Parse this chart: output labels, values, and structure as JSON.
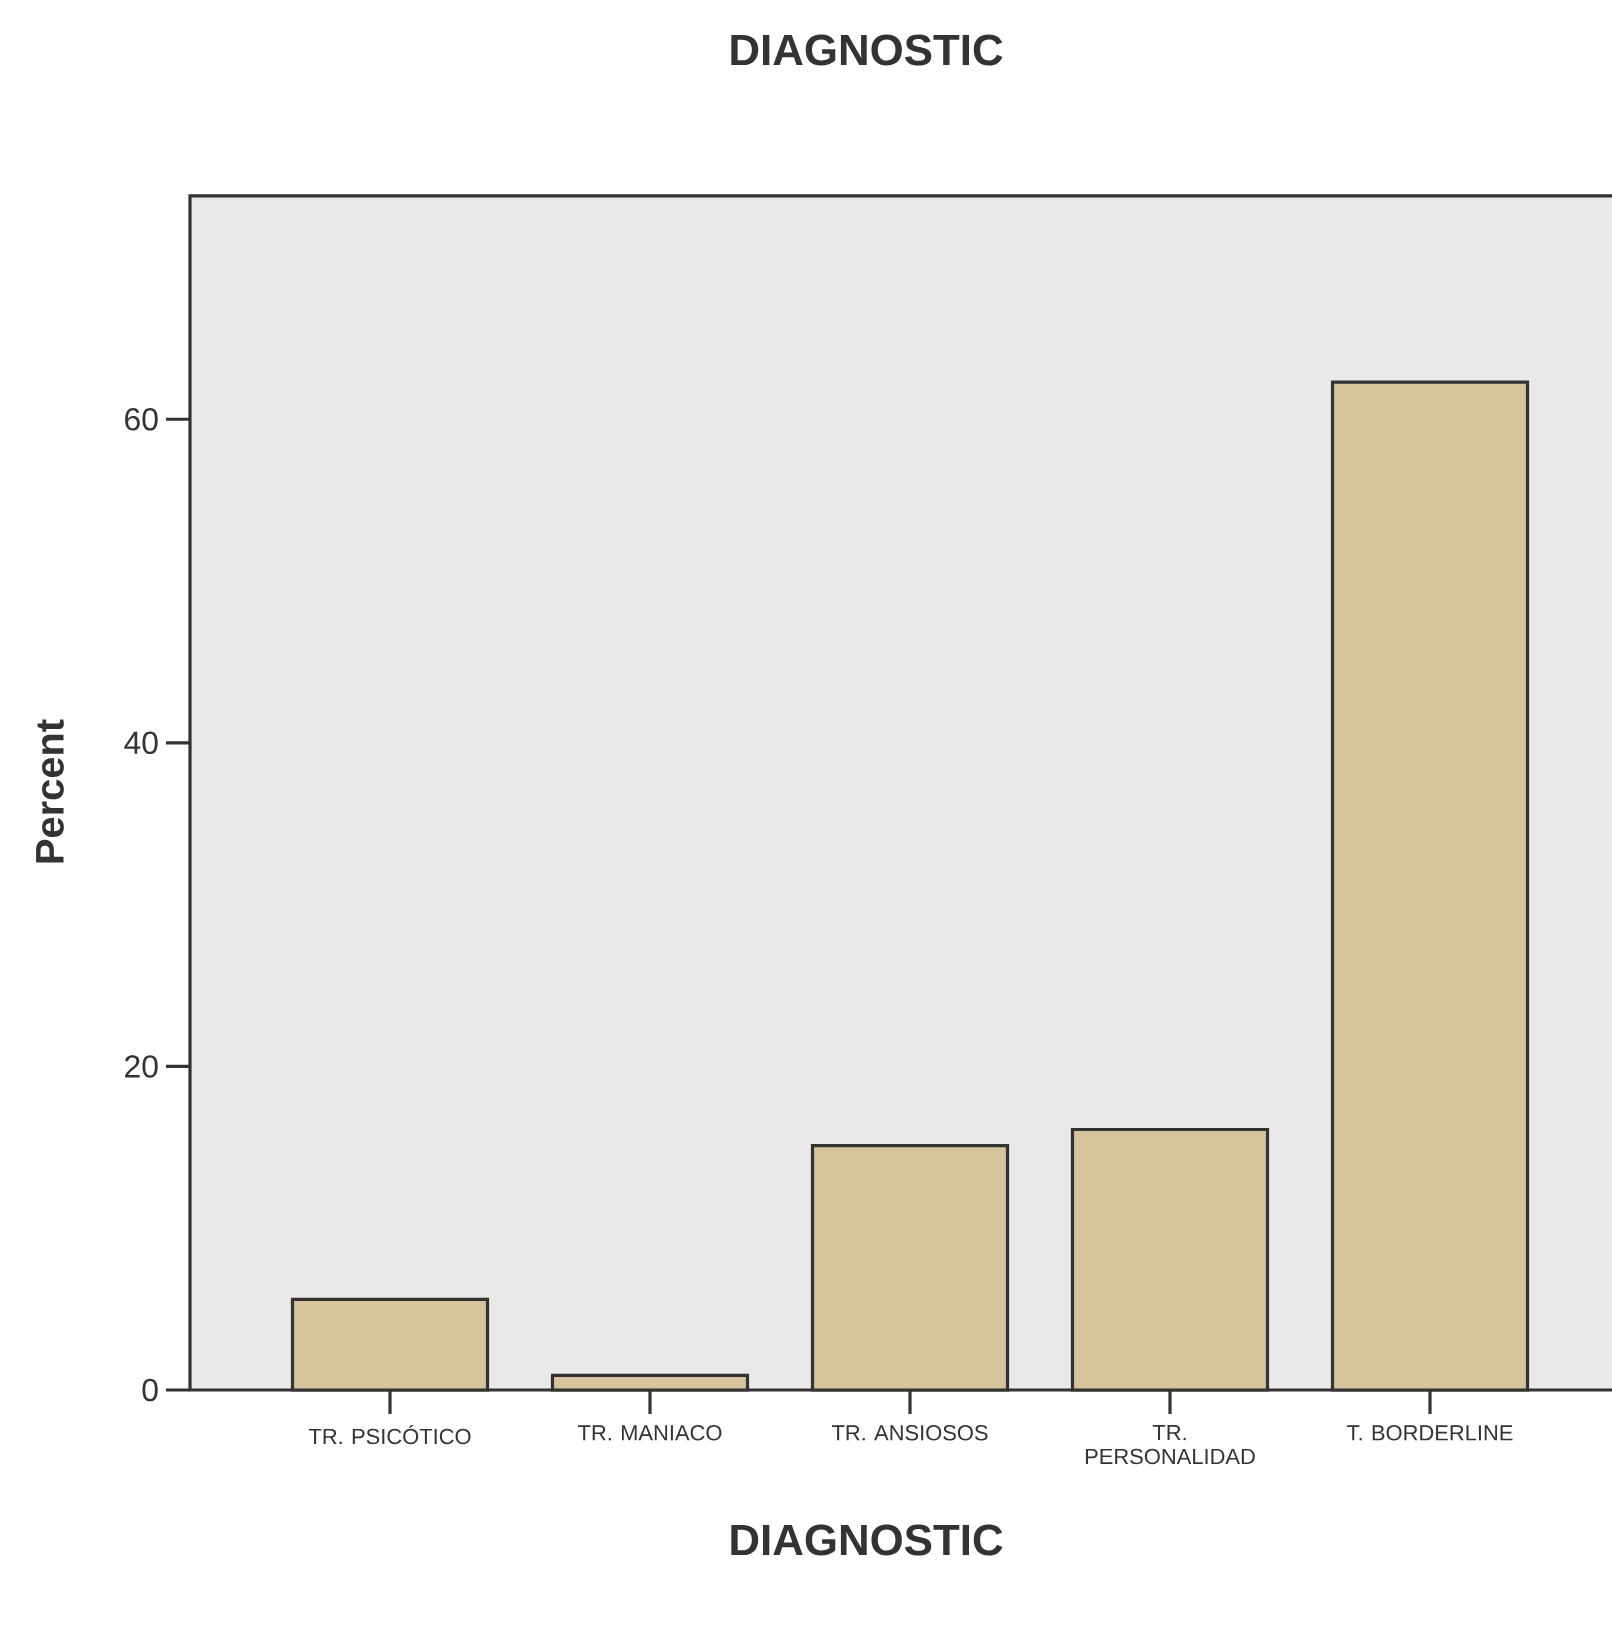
{
  "chart_data": {
    "type": "bar",
    "title": "DIAGNOSTIC",
    "xlabel": "DIAGNOSTIC",
    "ylabel": "Percent",
    "categories": [
      "TR. PSICÓTICO",
      "TR. MANIACO",
      "TR. ANSIOSOS",
      "TR. PERSONALIDAD",
      "T. BORDERLINE"
    ],
    "values": [
      5.6,
      0.9,
      15.1,
      16.1,
      62.3
    ],
    "color": "#d6c49c",
    "ylim": [
      0,
      73.8
    ],
    "yticks": [
      0,
      20,
      40,
      60
    ]
  }
}
